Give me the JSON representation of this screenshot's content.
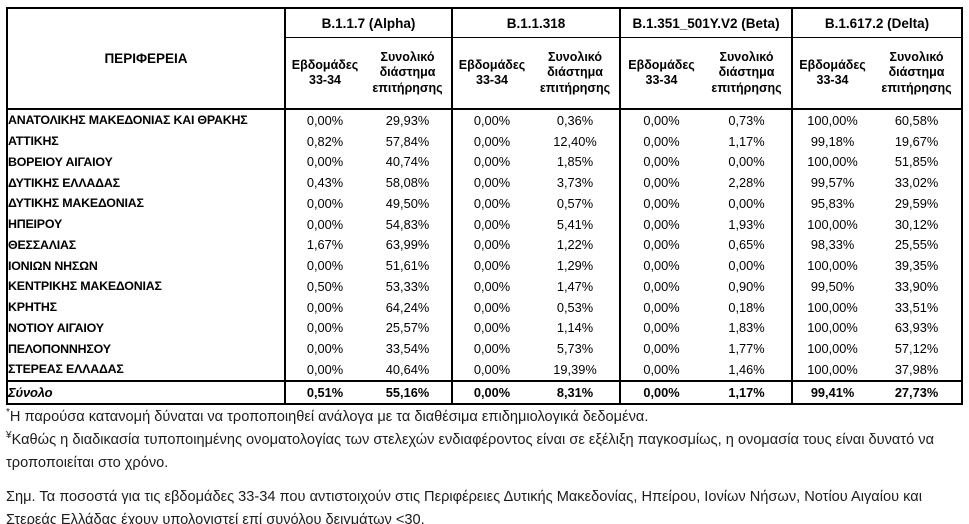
{
  "table": {
    "region_header": "ΠΕΡΙΦΕΡΕΙΑ",
    "variants": [
      "B.1.1.7 (Alpha)",
      "B.1.1.318",
      "B.1.351_501Y.V2 (Beta)",
      "B.1.617.2 (Delta)"
    ],
    "sub_weeks": "Εβδομάδες 33-34",
    "sub_total": "Συνολικό διάστημα επιτήρησης",
    "rows": [
      {
        "region": "ΑΝΑΤΟΛΙΚΗΣ ΜΑΚΕΔΟΝΙΑΣ ΚΑΙ ΘΡΑΚΗΣ",
        "values": [
          "0,00%",
          "29,93%",
          "0,00%",
          "0,36%",
          "0,00%",
          "0,73%",
          "100,00%",
          "60,58%"
        ]
      },
      {
        "region": "ΑΤΤΙΚΗΣ",
        "values": [
          "0,82%",
          "57,84%",
          "0,00%",
          "12,40%",
          "0,00%",
          "1,17%",
          "99,18%",
          "19,67%"
        ]
      },
      {
        "region": "ΒΟΡΕΙΟΥ ΑΙΓΑΙΟΥ",
        "values": [
          "0,00%",
          "40,74%",
          "0,00%",
          "1,85%",
          "0,00%",
          "0,00%",
          "100,00%",
          "51,85%"
        ]
      },
      {
        "region": "ΔΥΤΙΚΗΣ ΕΛΛΑΔΑΣ",
        "values": [
          "0,43%",
          "58,08%",
          "0,00%",
          "3,73%",
          "0,00%",
          "2,28%",
          "99,57%",
          "33,02%"
        ]
      },
      {
        "region": "ΔΥΤΙΚΗΣ ΜΑΚΕΔΟΝΙΑΣ",
        "values": [
          "0,00%",
          "49,50%",
          "0,00%",
          "0,57%",
          "0,00%",
          "0,00%",
          "95,83%",
          "29,59%"
        ]
      },
      {
        "region": "ΗΠΕΙΡΟΥ",
        "values": [
          "0,00%",
          "54,83%",
          "0,00%",
          "5,41%",
          "0,00%",
          "1,93%",
          "100,00%",
          "30,12%"
        ]
      },
      {
        "region": "ΘΕΣΣΑΛΙΑΣ",
        "values": [
          "1,67%",
          "63,99%",
          "0,00%",
          "1,22%",
          "0,00%",
          "0,65%",
          "98,33%",
          "25,55%"
        ]
      },
      {
        "region": "ΙΟΝΙΩΝ ΝΗΣΩΝ",
        "values": [
          "0,00%",
          "51,61%",
          "0,00%",
          "1,29%",
          "0,00%",
          "0,00%",
          "100,00%",
          "39,35%"
        ]
      },
      {
        "region": "ΚΕΝΤΡΙΚΗΣ ΜΑΚΕΔΟΝΙΑΣ",
        "values": [
          "0,50%",
          "53,33%",
          "0,00%",
          "1,47%",
          "0,00%",
          "0,90%",
          "99,50%",
          "33,90%"
        ]
      },
      {
        "region": "ΚΡΗΤΗΣ",
        "values": [
          "0,00%",
          "64,24%",
          "0,00%",
          "0,53%",
          "0,00%",
          "0,18%",
          "100,00%",
          "33,51%"
        ]
      },
      {
        "region": "ΝΟΤΙΟΥ ΑΙΓΑΙΟΥ",
        "values": [
          "0,00%",
          "25,57%",
          "0,00%",
          "1,14%",
          "0,00%",
          "1,83%",
          "100,00%",
          "63,93%"
        ]
      },
      {
        "region": "ΠΕΛΟΠΟΝΝΗΣΟΥ",
        "values": [
          "0,00%",
          "33,54%",
          "0,00%",
          "5,73%",
          "0,00%",
          "1,77%",
          "100,00%",
          "57,12%"
        ]
      },
      {
        "region": "ΣΤΕΡΕΑΣ ΕΛΛΑΔΑΣ",
        "values": [
          "0,00%",
          "40,64%",
          "0,00%",
          "19,39%",
          "0,00%",
          "1,46%",
          "100,00%",
          "37,98%"
        ]
      }
    ],
    "total": {
      "region": "Σύνολο",
      "values": [
        "0,51%",
        "55,16%",
        "0,00%",
        "8,31%",
        "0,00%",
        "1,17%",
        "99,41%",
        "27,73%"
      ]
    }
  },
  "footnotes": {
    "marker1": "*",
    "text1": "Η παρούσα κατανομή δύναται να τροποποιηθεί ανάλογα με τα διαθέσιμα επιδημιολογικά δεδομένα.",
    "marker2": "¥",
    "text2_line1": "Καθώς η διαδικασία τυποποιημένης ονοματολογίας των στελεχών ενδιαφέροντος είναι σε εξέλιξη παγκοσμίως, η ονομασία τους είναι δυνατό να",
    "text2_line2": "τροποποιείται στο χρόνο.",
    "note_line1": "Σημ. Τα ποσοστά για τις εβδομάδες 33-34 που αντιστοιχούν στις Περιφέρειες Δυτικής Μακεδονίας, Ηπείρου, Ιονίων Νήσων, Νοτίου Αιγαίου και",
    "note_line2": "Στερεάς Ελλάδας έχουν υπολογιστεί επί συνόλου δειγμάτων <30."
  }
}
